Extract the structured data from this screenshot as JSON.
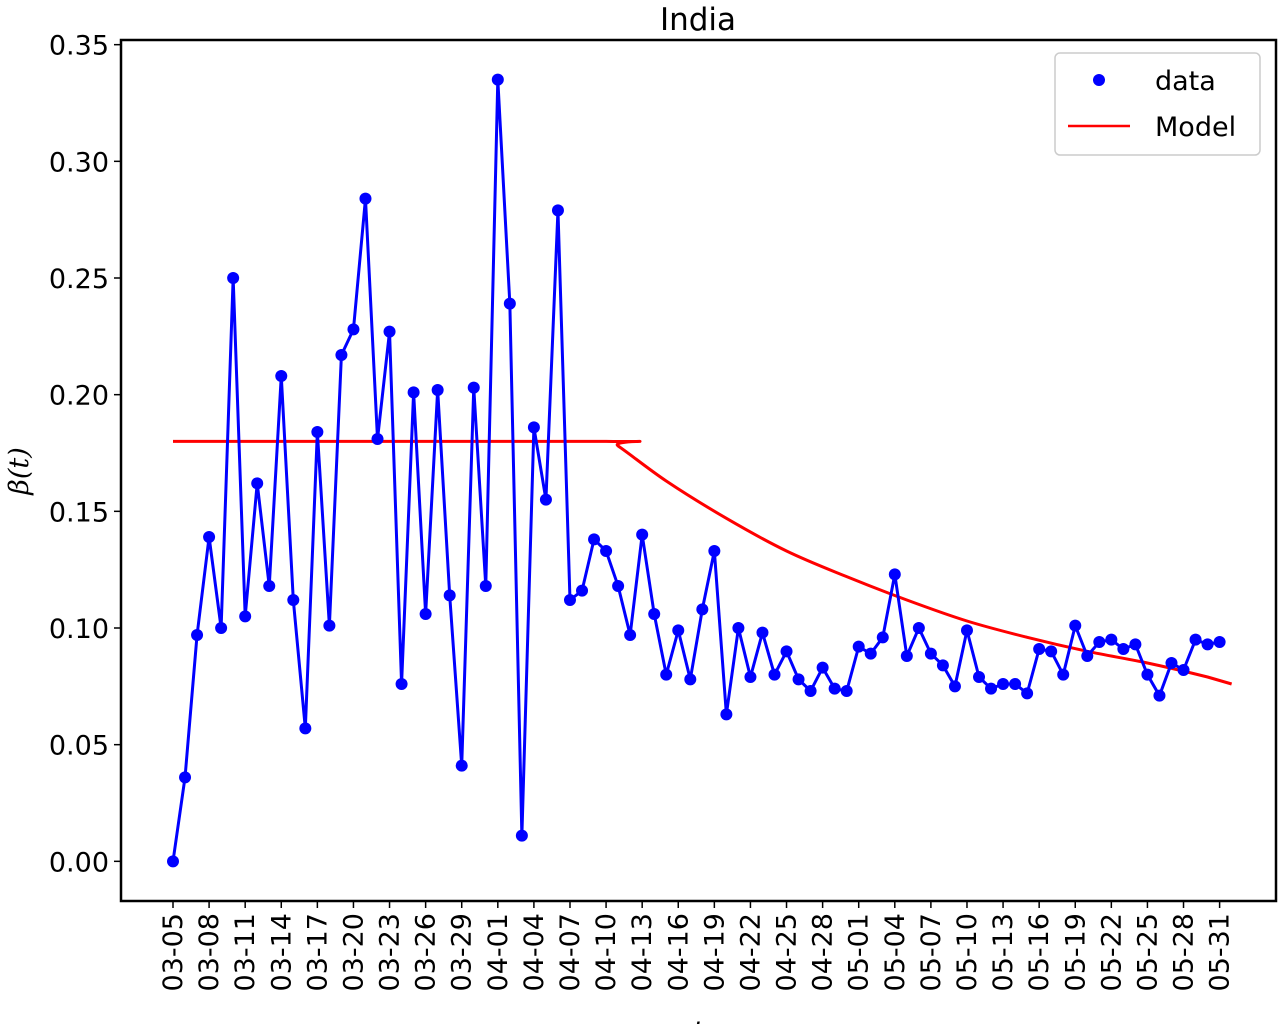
{
  "chart_data": {
    "type": "line",
    "title": "India",
    "xlabel": "t",
    "ylabel": "β(t)",
    "ylim": [
      -0.017,
      0.352
    ],
    "yticks": [
      "0.00",
      "0.05",
      "0.10",
      "0.15",
      "0.20",
      "0.25",
      "0.30",
      "0.35"
    ],
    "xtick_labels": [
      "03-05",
      "03-08",
      "03-11",
      "03-14",
      "03-17",
      "03-20",
      "03-23",
      "03-26",
      "03-29",
      "04-01",
      "04-04",
      "04-07",
      "04-10",
      "04-13",
      "04-16",
      "04-19",
      "04-22",
      "04-25",
      "04-28",
      "05-01",
      "05-04",
      "05-07",
      "05-10",
      "05-13",
      "05-16",
      "05-19",
      "05-22",
      "05-25",
      "05-28",
      "05-31"
    ],
    "x_start": "03-05",
    "x_end": "06-01",
    "grid": false,
    "legend_position": "upper right",
    "series": [
      {
        "name": "data",
        "style": "line-with-markers",
        "color": "#0000ff",
        "values": [
          0.0,
          0.036,
          0.097,
          0.139,
          0.1,
          0.25,
          0.105,
          0.162,
          0.118,
          0.208,
          0.112,
          0.057,
          0.184,
          0.101,
          0.217,
          0.228,
          0.284,
          0.181,
          0.227,
          0.076,
          0.201,
          0.106,
          0.202,
          0.114,
          0.041,
          0.203,
          0.118,
          0.335,
          0.239,
          0.011,
          0.186,
          0.155,
          0.279,
          0.112,
          0.116,
          0.138,
          0.133,
          0.118,
          0.097,
          0.14,
          0.106,
          0.08,
          0.099,
          0.078,
          0.108,
          0.133,
          0.063,
          0.1,
          0.079,
          0.098,
          0.08,
          0.09,
          0.078,
          0.073,
          0.083,
          0.074,
          0.073,
          0.092,
          0.089,
          0.096,
          0.123,
          0.088,
          0.1,
          0.089,
          0.084,
          0.075,
          0.099,
          0.079,
          0.074,
          0.076,
          0.076,
          0.072,
          0.091,
          0.09,
          0.08,
          0.101,
          0.088,
          0.094,
          0.095,
          0.091,
          0.093,
          0.08,
          0.071,
          0.085,
          0.082,
          0.095,
          0.093,
          0.094
        ]
      },
      {
        "name": "Model",
        "style": "line",
        "color": "#ff0000",
        "points": [
          [
            "03-05",
            0.18
          ],
          [
            "04-10",
            0.18
          ],
          [
            "04-11",
            0.178
          ],
          [
            "04-15",
            0.163
          ],
          [
            "04-20",
            0.147
          ],
          [
            "04-25",
            0.133
          ],
          [
            "04-30",
            0.122
          ],
          [
            "05-05",
            0.112
          ],
          [
            "05-10",
            0.103
          ],
          [
            "05-15",
            0.096
          ],
          [
            "05-20",
            0.09
          ],
          [
            "05-25",
            0.085
          ],
          [
            "05-30",
            0.079
          ],
          [
            "06-01",
            0.076
          ]
        ]
      }
    ]
  }
}
